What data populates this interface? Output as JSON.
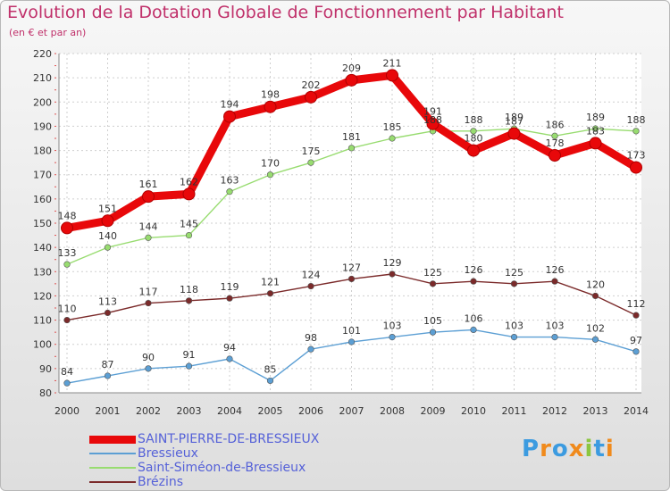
{
  "title": "Evolution de la Dotation Globale de Fonctionnement par Habitant",
  "subtitle": "(en € et par an)",
  "logo": [
    "P",
    "r",
    "o",
    "x",
    "i",
    "t",
    "i"
  ],
  "chart_data": {
    "type": "line",
    "title": "Evolution de la Dotation Globale de Fonctionnement par Habitant",
    "subtitle": "(en € et par an)",
    "xlabel": "",
    "ylabel": "",
    "ylim": [
      80,
      220
    ],
    "yticks": [
      80,
      90,
      100,
      110,
      120,
      130,
      140,
      150,
      160,
      170,
      180,
      190,
      200,
      210,
      220
    ],
    "categories": [
      "2000",
      "2001",
      "2002",
      "2003",
      "2004",
      "2005",
      "2006",
      "2007",
      "2008",
      "2009",
      "2010",
      "2011",
      "2012",
      "2013",
      "2014"
    ],
    "series": [
      {
        "name": "SAINT-PIERRE-DE-BRESSIEUX",
        "color": "#e8080a",
        "values": [
          148,
          151,
          161,
          162,
          194,
          198,
          202,
          209,
          211,
          191,
          180,
          187,
          178,
          183,
          173
        ],
        "labels": [
          "148",
          "151",
          "161",
          "162",
          "194",
          "198",
          "202",
          "209",
          "211",
          "191",
          "180",
          "187",
          "178",
          "183",
          "173"
        ]
      },
      {
        "name": "Bressieux",
        "color": "#5c9fd4",
        "values": [
          84,
          87,
          90,
          91,
          94,
          85,
          98,
          101,
          103,
          105,
          106,
          103,
          103,
          102,
          97
        ],
        "labels": [
          "84",
          "87",
          "90",
          "91",
          "94",
          "85",
          "98",
          "101",
          "103",
          "105",
          "106",
          "103",
          "103",
          "102",
          "97"
        ]
      },
      {
        "name": "Saint-Siméon-de-Bressieux",
        "color": "#98dc70",
        "values": [
          133,
          140,
          144,
          145,
          163,
          170,
          175,
          181,
          185,
          188,
          188,
          189,
          186,
          189,
          188
        ],
        "labels": [
          "133",
          "140",
          "144",
          "145",
          "163",
          "170",
          "175",
          "181",
          "185",
          "188",
          "188",
          "189",
          "186",
          "189",
          "188"
        ]
      },
      {
        "name": "Brézins",
        "color": "#7b2a2a",
        "values": [
          110,
          113,
          117,
          118,
          119,
          121,
          124,
          127,
          129,
          125,
          126,
          125,
          126,
          120,
          112
        ],
        "labels": [
          "110",
          "113",
          "117",
          "118",
          "119",
          "121",
          "124",
          "127",
          "129",
          "125",
          "126",
          "125",
          "126",
          "120",
          "112"
        ]
      }
    ],
    "legend": "bottom-left"
  },
  "legend": [
    {
      "label": "SAINT-PIERRE-DE-BRESSIEUX",
      "color": "#e8080a"
    },
    {
      "label": "Bressieux",
      "color": "#5c9fd4"
    },
    {
      "label": "Saint-Siméon-de-Bressieux",
      "color": "#98dc70"
    },
    {
      "label": "Brézins",
      "color": "#7b2a2a"
    }
  ]
}
